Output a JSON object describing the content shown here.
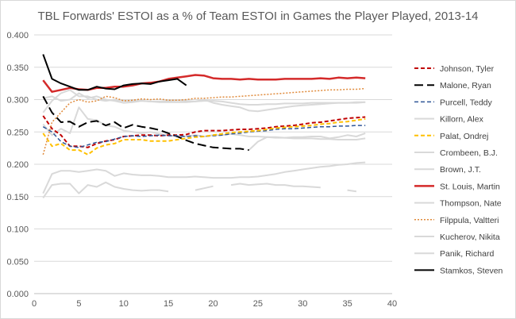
{
  "chart_data": {
    "type": "line",
    "title": "TBL Forwards' ESTOI as a % of Team ESTOI in Games the Player Played, 2013-14",
    "xlabel": "",
    "ylabel": "",
    "xlim": [
      0,
      40
    ],
    "ylim": [
      0,
      0.4
    ],
    "x_ticks": [
      0,
      5,
      10,
      15,
      20,
      25,
      30,
      35,
      40
    ],
    "x_tick_labels": [
      "0",
      "5",
      "10",
      "15",
      "20",
      "25",
      "30",
      "35",
      "40"
    ],
    "y_ticks": [
      0,
      0.05,
      0.1,
      0.15,
      0.2,
      0.25,
      0.3,
      0.35,
      0.4
    ],
    "y_tick_labels": [
      "0.000",
      "0.050",
      "0.100",
      "0.150",
      "0.200",
      "0.250",
      "0.300",
      "0.350",
      "0.400"
    ],
    "grid": true,
    "legend_position": "right",
    "series": [
      {
        "name": "Johnson, Tyler",
        "color": "#c00000",
        "dash": "dash",
        "width": 2,
        "x": [
          1,
          2,
          3,
          4,
          5,
          6,
          7,
          8,
          9,
          10,
          11,
          12,
          13,
          14,
          15,
          16,
          17,
          18,
          19,
          20,
          21,
          22,
          23,
          24,
          25,
          26,
          27,
          28,
          29,
          30,
          31,
          32,
          33,
          34,
          35,
          36,
          37
        ],
        "values": [
          0.275,
          0.255,
          0.245,
          0.228,
          0.228,
          0.226,
          0.232,
          0.236,
          0.238,
          0.243,
          0.244,
          0.245,
          0.245,
          0.244,
          0.245,
          0.245,
          0.246,
          0.25,
          0.252,
          0.252,
          0.252,
          0.253,
          0.254,
          0.254,
          0.255,
          0.256,
          0.258,
          0.259,
          0.26,
          0.262,
          0.264,
          0.265,
          0.267,
          0.269,
          0.271,
          0.272,
          0.273
        ]
      },
      {
        "name": "Malone, Ryan",
        "color": "#000000",
        "dash": "longdash",
        "width": 2,
        "x": [
          1,
          2,
          3,
          4,
          5,
          6,
          7,
          8,
          9,
          10,
          11,
          12,
          13,
          14,
          15,
          16,
          17,
          18,
          19,
          20,
          21,
          22,
          23,
          24
        ],
        "values": [
          0.305,
          0.28,
          0.265,
          0.266,
          0.258,
          0.265,
          0.267,
          0.26,
          0.265,
          0.256,
          0.261,
          0.258,
          0.256,
          0.253,
          0.248,
          0.243,
          0.237,
          0.232,
          0.229,
          0.226,
          0.225,
          0.224,
          0.224,
          0.222
        ]
      },
      {
        "name": "Purcell, Teddy",
        "color": "#2f5597",
        "dash": "dash",
        "width": 1.5,
        "x": [
          1,
          2,
          3,
          4,
          5,
          6,
          7,
          8,
          9,
          10,
          11,
          12,
          13,
          14,
          15,
          16,
          17,
          18,
          19,
          20,
          21,
          22,
          23,
          24,
          25,
          26,
          27,
          28,
          29,
          30,
          31,
          32,
          33,
          34,
          35,
          36,
          37
        ],
        "values": [
          0.258,
          0.25,
          0.235,
          0.228,
          0.226,
          0.23,
          0.234,
          0.235,
          0.239,
          0.243,
          0.244,
          0.243,
          0.244,
          0.245,
          0.244,
          0.244,
          0.243,
          0.244,
          0.243,
          0.244,
          0.245,
          0.247,
          0.248,
          0.25,
          0.251,
          0.252,
          0.254,
          0.255,
          0.255,
          0.256,
          0.257,
          0.258,
          0.258,
          0.259,
          0.259,
          0.26,
          0.26
        ]
      },
      {
        "name": "Killorn, Alex",
        "color": "#d9d9d9",
        "dash": "solid",
        "width": 2,
        "x": [
          1,
          2,
          3,
          4,
          5,
          6,
          7,
          8,
          9,
          10,
          11,
          12,
          13,
          14,
          15,
          16,
          17,
          18,
          19,
          20,
          21,
          22,
          23,
          24,
          25,
          26,
          27,
          28,
          29,
          30,
          31,
          32,
          33,
          34,
          35,
          36,
          37
        ],
        "values": [
          0.302,
          0.305,
          0.298,
          0.3,
          0.31,
          0.302,
          0.305,
          0.3,
          0.298,
          0.295,
          0.296,
          0.298,
          0.297,
          0.297,
          0.298,
          0.299,
          0.298,
          0.297,
          0.298,
          0.298,
          0.297,
          0.295,
          0.293,
          0.292,
          0.292,
          0.293,
          0.293,
          0.294,
          0.294,
          0.294,
          0.295,
          0.295,
          0.295,
          0.295,
          0.295,
          0.296,
          0.296
        ]
      },
      {
        "name": "Palat, Ondrej",
        "color": "#ffc000",
        "dash": "dash",
        "width": 2,
        "x": [
          1,
          2,
          3,
          4,
          5,
          6,
          7,
          8,
          9,
          10,
          11,
          12,
          13,
          14,
          15,
          16,
          17,
          18,
          19,
          20,
          21,
          22,
          23,
          24,
          25,
          26,
          27,
          28,
          29,
          30,
          31,
          32,
          33,
          34,
          35,
          36,
          37
        ],
        "values": [
          0.248,
          0.228,
          0.232,
          0.222,
          0.222,
          0.215,
          0.225,
          0.23,
          0.232,
          0.238,
          0.238,
          0.238,
          0.236,
          0.236,
          0.236,
          0.238,
          0.24,
          0.242,
          0.243,
          0.245,
          0.247,
          0.249,
          0.25,
          0.251,
          0.252,
          0.254,
          0.256,
          0.257,
          0.258,
          0.259,
          0.26,
          0.262,
          0.263,
          0.265,
          0.266,
          0.268,
          0.27
        ]
      },
      {
        "name": "Crombeen, B.J.",
        "color": "#d9d9d9",
        "dash": "solid",
        "width": 2,
        "x": [
          1,
          2,
          3,
          4,
          5,
          6,
          7,
          8,
          9,
          10,
          11,
          12,
          13,
          14,
          15,
          16,
          17,
          18,
          19,
          20,
          21,
          22,
          23,
          24,
          25,
          26,
          27,
          28,
          29,
          30,
          31,
          32,
          33,
          34,
          35,
          36,
          37
        ],
        "values": [
          0.148,
          0.168,
          0.17,
          0.17,
          0.155,
          0.168,
          0.165,
          0.172,
          0.165,
          0.162,
          0.16,
          0.159,
          0.16,
          0.16,
          0.158,
          null,
          null,
          0.16,
          0.163,
          0.166,
          null,
          0.168,
          0.17,
          0.168,
          0.169,
          0.17,
          0.168,
          0.168,
          0.166,
          0.166,
          0.165,
          0.164,
          null,
          null,
          0.16,
          0.158,
          null
        ]
      },
      {
        "name": "Brown, J.T.",
        "color": "#d9d9d9",
        "dash": "solid",
        "width": 2,
        "x": [
          1,
          2,
          3,
          4,
          5,
          6,
          7,
          8,
          9,
          10,
          11,
          12,
          13,
          14,
          15,
          16,
          17,
          18,
          19,
          20,
          21,
          22,
          23,
          24,
          25,
          26,
          27,
          28,
          29,
          30,
          31,
          32,
          33,
          34,
          35,
          36,
          37
        ],
        "values": [
          0.155,
          0.185,
          0.19,
          0.19,
          0.188,
          0.19,
          0.192,
          0.19,
          0.182,
          0.186,
          0.184,
          0.183,
          0.183,
          0.182,
          0.18,
          0.18,
          0.18,
          0.181,
          0.18,
          0.179,
          0.179,
          0.179,
          0.18,
          0.18,
          0.181,
          0.183,
          0.185,
          0.188,
          0.19,
          0.192,
          0.194,
          0.196,
          0.197,
          0.199,
          0.2,
          0.202,
          0.203
        ]
      },
      {
        "name": "St. Louis, Martin",
        "color": "#d42a2a",
        "dash": "solid",
        "width": 2.5,
        "x": [
          1,
          2,
          3,
          4,
          5,
          6,
          7,
          8,
          9,
          10,
          11,
          12,
          13,
          14,
          15,
          16,
          17,
          18,
          19,
          20,
          21,
          22,
          23,
          24,
          25,
          26,
          27,
          28,
          29,
          30,
          31,
          32,
          33,
          34,
          35,
          36,
          37
        ],
        "values": [
          0.33,
          0.312,
          0.315,
          0.318,
          0.316,
          0.315,
          0.318,
          0.318,
          0.32,
          0.32,
          0.322,
          0.325,
          0.326,
          0.328,
          0.332,
          0.334,
          0.336,
          0.338,
          0.337,
          0.333,
          0.332,
          0.332,
          0.331,
          0.332,
          0.331,
          0.331,
          0.331,
          0.332,
          0.332,
          0.332,
          0.332,
          0.333,
          0.332,
          0.334,
          0.333,
          0.334,
          0.333
        ]
      },
      {
        "name": "Thompson, Nate",
        "color": "#d9d9d9",
        "dash": "solid",
        "width": 2,
        "x": [
          1,
          2,
          3,
          4,
          5,
          6,
          7,
          8,
          9,
          10,
          11,
          12,
          13,
          14,
          15,
          16,
          17,
          18,
          19,
          20,
          21,
          22,
          23,
          24,
          25,
          26,
          27,
          28,
          29,
          30,
          31,
          32,
          33,
          34,
          35,
          36,
          37
        ],
        "values": [
          0.262,
          0.245,
          0.255,
          0.248,
          0.288,
          0.27,
          0.268,
          0.26,
          0.258,
          0.252,
          0.25,
          0.248,
          0.25,
          0.247,
          0.245,
          0.243,
          0.243,
          0.245,
          0.243,
          0.245,
          0.245,
          0.247,
          0.245,
          0.243,
          0.243,
          0.242,
          0.241,
          0.241,
          0.24,
          0.24,
          0.24,
          0.239,
          0.239,
          0.238,
          0.238,
          0.238,
          0.24
        ]
      },
      {
        "name": "Filppula, Valtteri",
        "color": "#e08a3a",
        "dash": "dot",
        "width": 1.5,
        "x": [
          1,
          2,
          3,
          4,
          5,
          6,
          7,
          8,
          9,
          10,
          11,
          12,
          13,
          14,
          15,
          16,
          17,
          18,
          19,
          20,
          21,
          22,
          23,
          24,
          25,
          26,
          27,
          28,
          29,
          30,
          31,
          32,
          33,
          34,
          35,
          36,
          37
        ],
        "values": [
          0.215,
          0.265,
          0.28,
          0.295,
          0.3,
          0.296,
          0.298,
          0.305,
          0.303,
          0.298,
          0.299,
          0.301,
          0.3,
          0.301,
          0.299,
          0.299,
          0.3,
          0.302,
          0.302,
          0.303,
          0.304,
          0.304,
          0.305,
          0.306,
          0.307,
          0.308,
          0.309,
          0.31,
          0.311,
          0.312,
          0.313,
          0.314,
          0.315,
          0.315,
          0.316,
          0.316,
          0.317
        ]
      },
      {
        "name": "Kucherov, Nikita",
        "color": "#d9d9d9",
        "dash": "solid",
        "width": 2,
        "x": [
          24,
          25,
          26,
          27,
          28,
          29,
          30,
          31,
          32,
          33,
          34,
          35,
          36,
          37
        ],
        "values": [
          0.222,
          0.235,
          0.242,
          0.242,
          0.241,
          0.242,
          0.242,
          0.243,
          0.243,
          0.24,
          0.242,
          0.245,
          0.243,
          0.248
        ]
      },
      {
        "name": "Panik, Richard",
        "color": "#d9d9d9",
        "dash": "solid",
        "width": 2,
        "x": [
          1,
          2,
          3,
          4,
          5,
          6,
          7,
          8,
          9,
          10,
          11,
          12,
          13,
          14,
          15,
          16,
          17,
          18,
          19,
          20,
          21,
          22,
          23,
          24,
          25,
          26,
          27,
          28,
          29,
          30,
          31,
          32,
          33,
          34,
          35,
          36,
          37
        ],
        "values": [
          0.28,
          0.298,
          0.31,
          0.315,
          0.305,
          0.305,
          0.3,
          0.298,
          0.3,
          0.298,
          0.298,
          0.298,
          0.297,
          0.296,
          0.296,
          0.296,
          0.296,
          0.297,
          0.3,
          0.295,
          0.292,
          0.29,
          0.288,
          0.283,
          0.282,
          0.284,
          0.286,
          0.288,
          0.29,
          0.291,
          0.292,
          0.293,
          0.294,
          0.295,
          0.295,
          0.295,
          0.296
        ]
      },
      {
        "name": "Stamkos, Steven",
        "color": "#000000",
        "dash": "solid",
        "width": 2,
        "x": [
          1,
          2,
          3,
          4,
          5,
          6,
          7,
          8,
          9,
          10,
          11,
          12,
          13,
          14,
          15,
          16,
          17
        ],
        "values": [
          0.37,
          0.332,
          0.325,
          0.32,
          0.315,
          0.315,
          0.32,
          0.317,
          0.316,
          0.322,
          0.324,
          0.325,
          0.324,
          0.328,
          0.33,
          0.332,
          0.322
        ]
      }
    ]
  }
}
